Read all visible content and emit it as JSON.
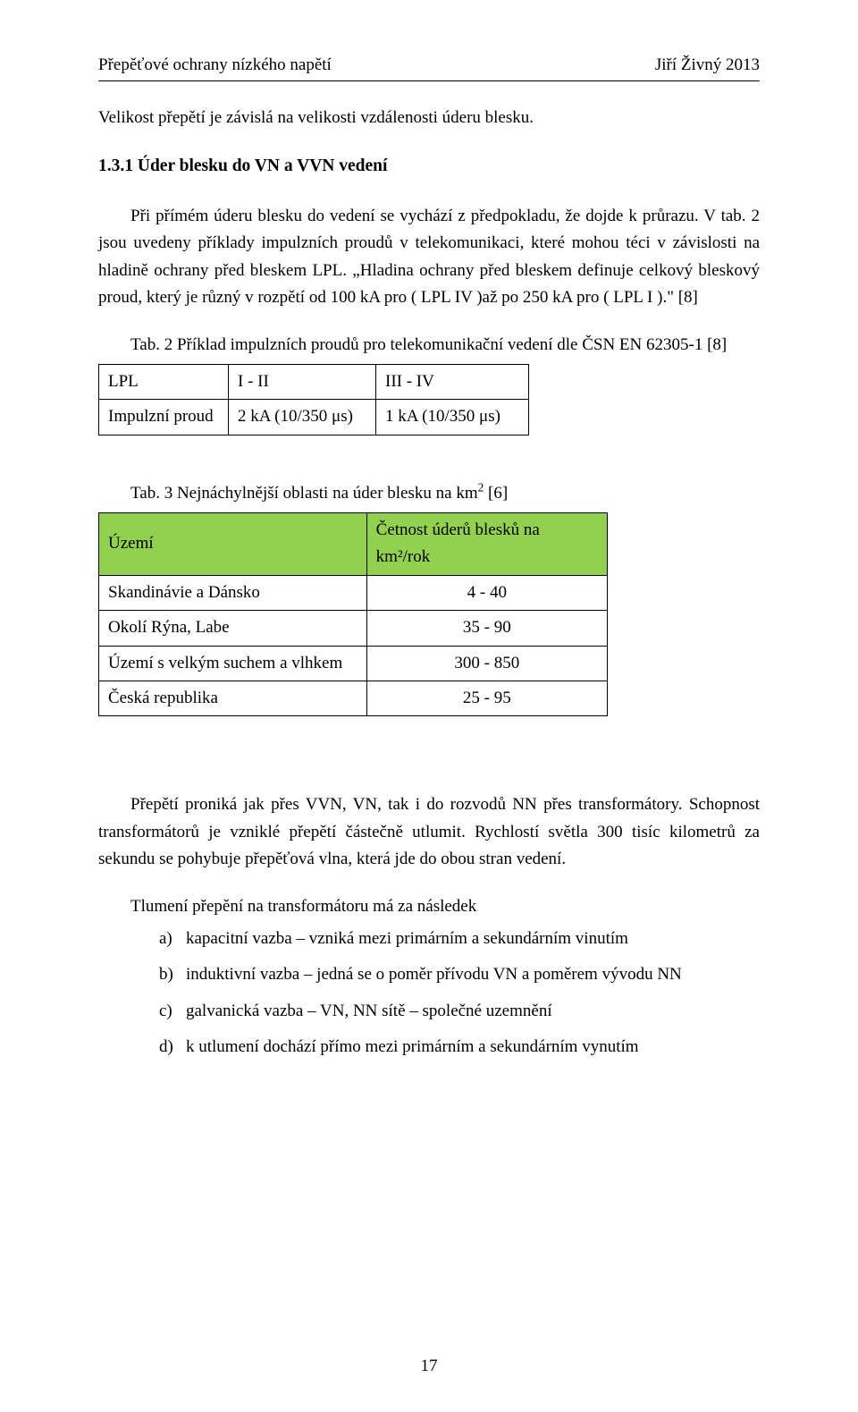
{
  "header": {
    "left": "Přepěťové ochrany nízkého napětí",
    "right": "Jiří Živný 2013"
  },
  "p1": "Velikost přepětí je závislá na velikosti vzdálenosti úderu blesku.",
  "heading": "1.3.1  Úder blesku do VN a VVN vedení",
  "p2": "Při přímém úderu blesku do vedení se vychází z předpokladu, že dojde k průrazu. V tab. 2 jsou uvedeny příklady impulzních proudů v telekomunikaci, které mohou téci v závislosti na hladině ochrany před bleskem LPL. „Hladina ochrany před bleskem definuje celkový bleskový proud, který je různý v rozpětí od 100 kA pro ( LPL IV )až po 250 kA pro ( LPL I ).\" [8]",
  "tab2_caption": "Tab. 2 Příklad impulzních proudů pro telekomunikační vedení dle ČSN EN 62305-1 [8]",
  "tab2": {
    "rows": [
      [
        "LPL",
        "I - II",
        "III - IV"
      ],
      [
        "Impulzní proud",
        "2 kA (10/350 μs)",
        "1 kA (10/350 μs)"
      ]
    ]
  },
  "tab3_caption_a": "Tab. 3 Nejnáchylnější oblasti na úder blesku na km",
  "tab3_caption_sup": "2",
  "tab3_caption_b": " [6]",
  "tab3": {
    "header": [
      "Území",
      "Četnost úderů blesků na km²/rok"
    ],
    "rows": [
      [
        "Skandinávie a Dánsko",
        "4 - 40"
      ],
      [
        "Okolí Rýna, Labe",
        "35 - 90"
      ],
      [
        "Území s velkým suchem a vlhkem",
        "300 - 850"
      ],
      [
        "Česká republika",
        "25 - 95"
      ]
    ],
    "header_bg": "#92d050"
  },
  "p3": "Přepětí proniká jak přes VVN, VN, tak i do rozvodů NN přes transformátory. Schopnost transformátorů je vzniklé přepětí částečně utlumit. Rychlostí světla 300 tisíc kilometrů za sekundu se pohybuje přepěťová vlna, která jde do obou stran vedení.",
  "p4": "Tlumení přepění na transformátoru má za následek",
  "list": [
    {
      "marker": "a)",
      "text": "kapacitní vazba – vzniká mezi primárním a sekundárním vinutím"
    },
    {
      "marker": "b)",
      "text": "induktivní vazba – jedná se o poměr přívodu VN a poměrem vývodu NN"
    },
    {
      "marker": "c)",
      "text": "galvanická vazba – VN, NN sítě – společné uzemnění"
    },
    {
      "marker": "d)",
      "text": "k utlumení dochází přímo mezi primárním a sekundárním vynutím"
    }
  ],
  "page_number": "17"
}
